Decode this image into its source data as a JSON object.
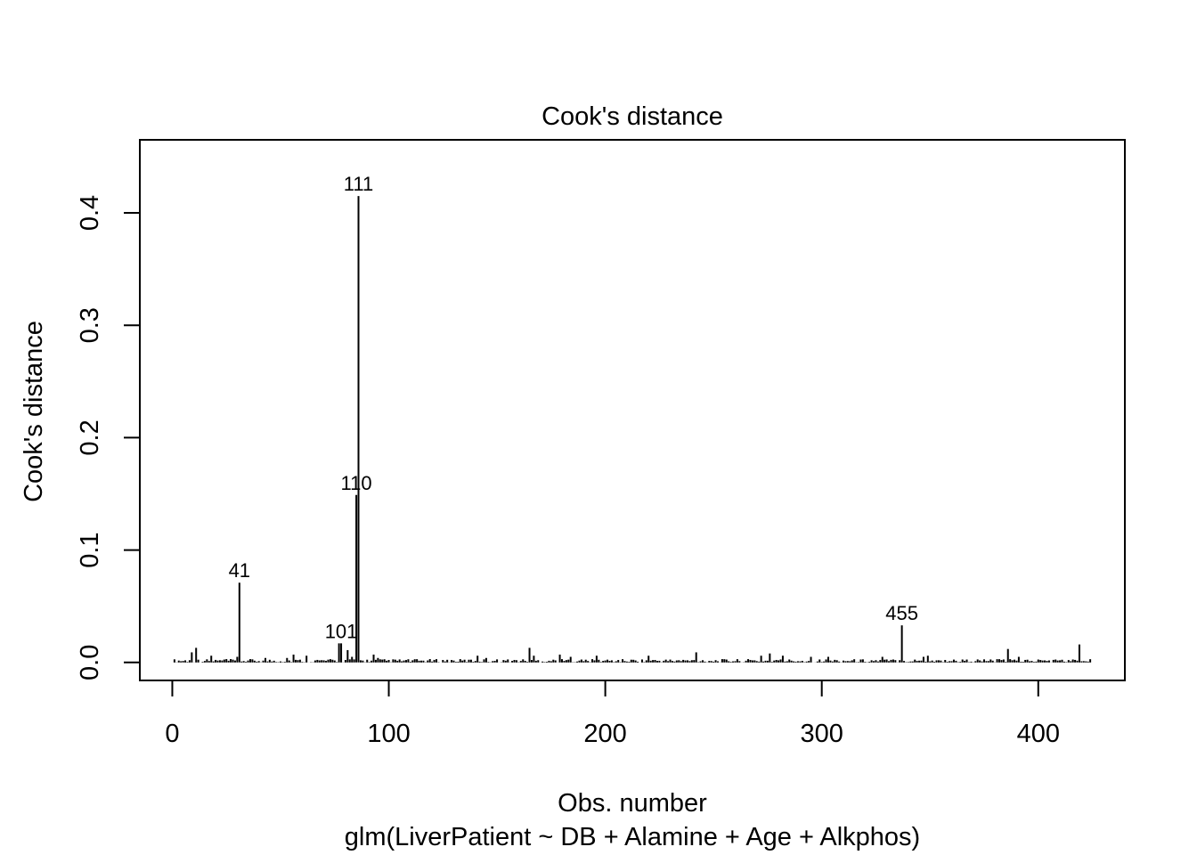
{
  "chart_data": {
    "type": "bar",
    "title": "Cook's distance",
    "xlabel": "Obs. number",
    "subtitle": "glm(LiverPatient ~ DB + Alamine + Age + Alkphos)",
    "ylabel": "Cook's distance",
    "xlim": [
      -15,
      440
    ],
    "ylim": [
      -0.016,
      0.465
    ],
    "x_ticks": [
      0,
      100,
      200,
      300,
      400
    ],
    "x_tick_labels": [
      "0",
      "100",
      "200",
      "300",
      "400"
    ],
    "y_ticks": [
      0.0,
      0.1,
      0.2,
      0.3,
      0.4
    ],
    "y_tick_labels": [
      "0.0",
      "0.1",
      "0.2",
      "0.3",
      "0.4"
    ],
    "n_obs": 424,
    "notable_points": [
      {
        "x": 31,
        "y": 0.071,
        "label": "41"
      },
      {
        "x": 78,
        "y": 0.017,
        "label": "101"
      },
      {
        "x": 85,
        "y": 0.149,
        "label": "110"
      },
      {
        "x": 86,
        "y": 0.415,
        "label": "111"
      },
      {
        "x": 337,
        "y": 0.033,
        "label": "455"
      }
    ],
    "other_nonzero_points": [
      {
        "x": 9,
        "y": 0.009
      },
      {
        "x": 11,
        "y": 0.013
      },
      {
        "x": 18,
        "y": 0.006
      },
      {
        "x": 25,
        "y": 0.003
      },
      {
        "x": 30,
        "y": 0.005
      },
      {
        "x": 43,
        "y": 0.004
      },
      {
        "x": 53,
        "y": 0.004
      },
      {
        "x": 56,
        "y": 0.007
      },
      {
        "x": 62,
        "y": 0.006
      },
      {
        "x": 77,
        "y": 0.017
      },
      {
        "x": 81,
        "y": 0.011
      },
      {
        "x": 83,
        "y": 0.005
      },
      {
        "x": 93,
        "y": 0.007
      },
      {
        "x": 95,
        "y": 0.004
      },
      {
        "x": 141,
        "y": 0.006
      },
      {
        "x": 145,
        "y": 0.004
      },
      {
        "x": 165,
        "y": 0.013
      },
      {
        "x": 167,
        "y": 0.006
      },
      {
        "x": 179,
        "y": 0.007
      },
      {
        "x": 184,
        "y": 0.005
      },
      {
        "x": 196,
        "y": 0.006
      },
      {
        "x": 220,
        "y": 0.006
      },
      {
        "x": 242,
        "y": 0.009
      },
      {
        "x": 272,
        "y": 0.006
      },
      {
        "x": 276,
        "y": 0.008
      },
      {
        "x": 282,
        "y": 0.006
      },
      {
        "x": 295,
        "y": 0.005
      },
      {
        "x": 303,
        "y": 0.005
      },
      {
        "x": 328,
        "y": 0.005
      },
      {
        "x": 347,
        "y": 0.005
      },
      {
        "x": 349,
        "y": 0.006
      },
      {
        "x": 386,
        "y": 0.012
      },
      {
        "x": 391,
        "y": 0.005
      },
      {
        "x": 419,
        "y": 0.016
      }
    ],
    "baseline_max": 0.003,
    "grid": false,
    "legend": "none"
  }
}
